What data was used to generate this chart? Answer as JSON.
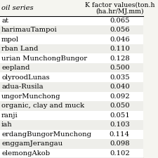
{
  "col1_header": "oil series",
  "col2_header_line1": "K factor values(ton.h",
  "col2_header_line2": "(ha.hr/MJ.mm)",
  "rows": [
    [
      "at",
      "0.065"
    ],
    [
      "harimauTampoi",
      "0.056"
    ],
    [
      "mpol",
      "0.046"
    ],
    [
      "rban Land",
      "0.110"
    ],
    [
      "urian MunchongBungor",
      "0.128"
    ],
    [
      "eepland",
      "0.500"
    ],
    [
      "olyroodLunas",
      "0.035"
    ],
    [
      "adua-Rusila",
      "0.040"
    ],
    [
      "ungorMunchong",
      "0.092"
    ],
    [
      "organic, clay and muck",
      "0.050"
    ],
    [
      "ranji",
      "0.051"
    ],
    [
      "iah",
      "0.103"
    ],
    [
      "erdangBungorMunchong",
      "0.114"
    ],
    [
      "enggamJerangau",
      "0.098"
    ],
    [
      "elemongAkob",
      "0.102"
    ]
  ],
  "bg_color": "#f5f5f0",
  "row_even_color": "#ffffff",
  "row_odd_color": "#eeeeea",
  "font_size": 7.2,
  "header_font_size": 7.2,
  "col_split": 0.67
}
